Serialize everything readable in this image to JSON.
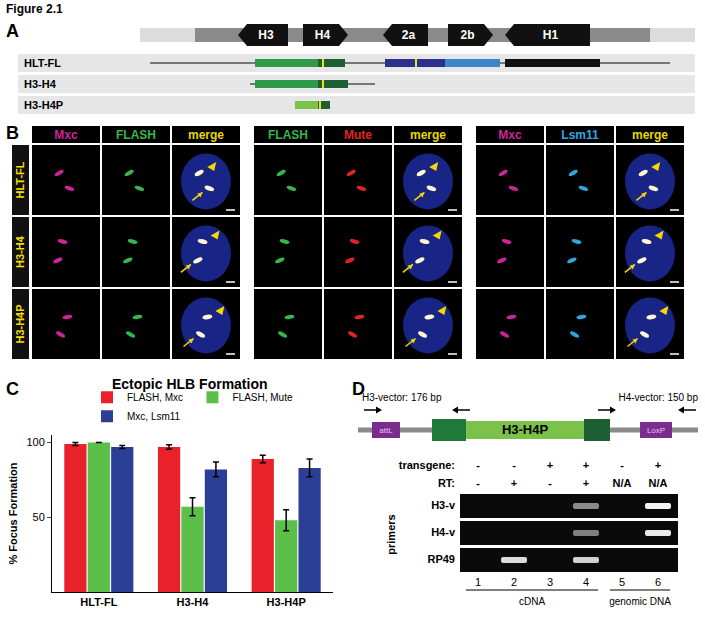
{
  "figure_label": "Figure 2.1",
  "panels": {
    "A": {
      "letter": "A",
      "genes": [
        "H3",
        "H4",
        "2a",
        "2b",
        "H1"
      ],
      "constructs": [
        "HLT-FL",
        "H3-H4",
        "H3-H4P"
      ]
    },
    "B": {
      "letter": "B",
      "groups": [
        [
          {
            "text": "Mxc",
            "color": "#d0239a"
          },
          {
            "text": "FLASH",
            "color": "#34b84c"
          },
          {
            "text": "merge",
            "color": "#e8d600"
          }
        ],
        [
          {
            "text": "FLASH",
            "color": "#34b84c"
          },
          {
            "text": "Mute",
            "color": "#e02424"
          },
          {
            "text": "merge",
            "color": "#e8d600"
          }
        ],
        [
          {
            "text": "Mxc",
            "color": "#d0239a"
          },
          {
            "text": "Lsm11",
            "color": "#2aa9e0"
          },
          {
            "text": "merge",
            "color": "#e8d600"
          }
        ]
      ],
      "rows": [
        "HLT-FL",
        "H3-H4",
        "H3-H4P"
      ]
    },
    "C": {
      "letter": "C"
    },
    "D": {
      "letter": "D",
      "amplicons": [
        "H3-vector: 176 bp",
        "H4-vector: 150 bp"
      ],
      "construct": [
        "attL",
        "H3-H4P",
        "LoxP"
      ],
      "table": [
        {
          "label": "transgene:",
          "values": [
            "-",
            "-",
            "+",
            "+",
            "-",
            "+"
          ]
        },
        {
          "label": "RT:",
          "values": [
            "-",
            "+",
            "-",
            "+",
            "N/A",
            "N/A"
          ]
        }
      ],
      "primers_label": "primers",
      "gel": [
        {
          "label": "H3-v",
          "bands": [
            0,
            0,
            0,
            0.55,
            0,
            1
          ]
        },
        {
          "label": "H4-v",
          "bands": [
            0,
            0,
            0,
            0.5,
            0,
            0.95
          ]
        },
        {
          "label": "RP49",
          "bands": [
            0,
            0.9,
            0,
            0.85,
            0,
            0
          ]
        }
      ],
      "lanes": [
        1,
        2,
        3,
        4,
        5,
        6
      ],
      "lane_groups": [
        {
          "label": "cDNA",
          "lanes": [
            1,
            2,
            3,
            4
          ]
        },
        {
          "label": "genomic DNA",
          "lanes": [
            5,
            6
          ]
        }
      ]
    }
  },
  "chart_data": {
    "type": "bar",
    "title": "Ectopic HLB Formation",
    "y_label": "% Focus Formation",
    "categories": [
      "HLT-FL",
      "H3-H4",
      "H3-H4P"
    ],
    "series": [
      {
        "name": "FLASH, Mxc",
        "color": "#e8212a",
        "values": [
          99,
          97,
          89
        ],
        "error": [
          1,
          1.5,
          2.5
        ]
      },
      {
        "name": "FLASH, Mute",
        "color": "#5cbf4a",
        "values": [
          100,
          57,
          48
        ],
        "error": [
          0,
          6,
          7
        ]
      },
      {
        "name": "Mxc, Lsm11",
        "color": "#2b3f96",
        "values": [
          97,
          82,
          83
        ],
        "error": [
          1,
          5,
          6
        ]
      }
    ],
    "ylim": [
      0,
      105
    ],
    "yticks": [
      50,
      100
    ],
    "legend": "top",
    "grid": false
  }
}
